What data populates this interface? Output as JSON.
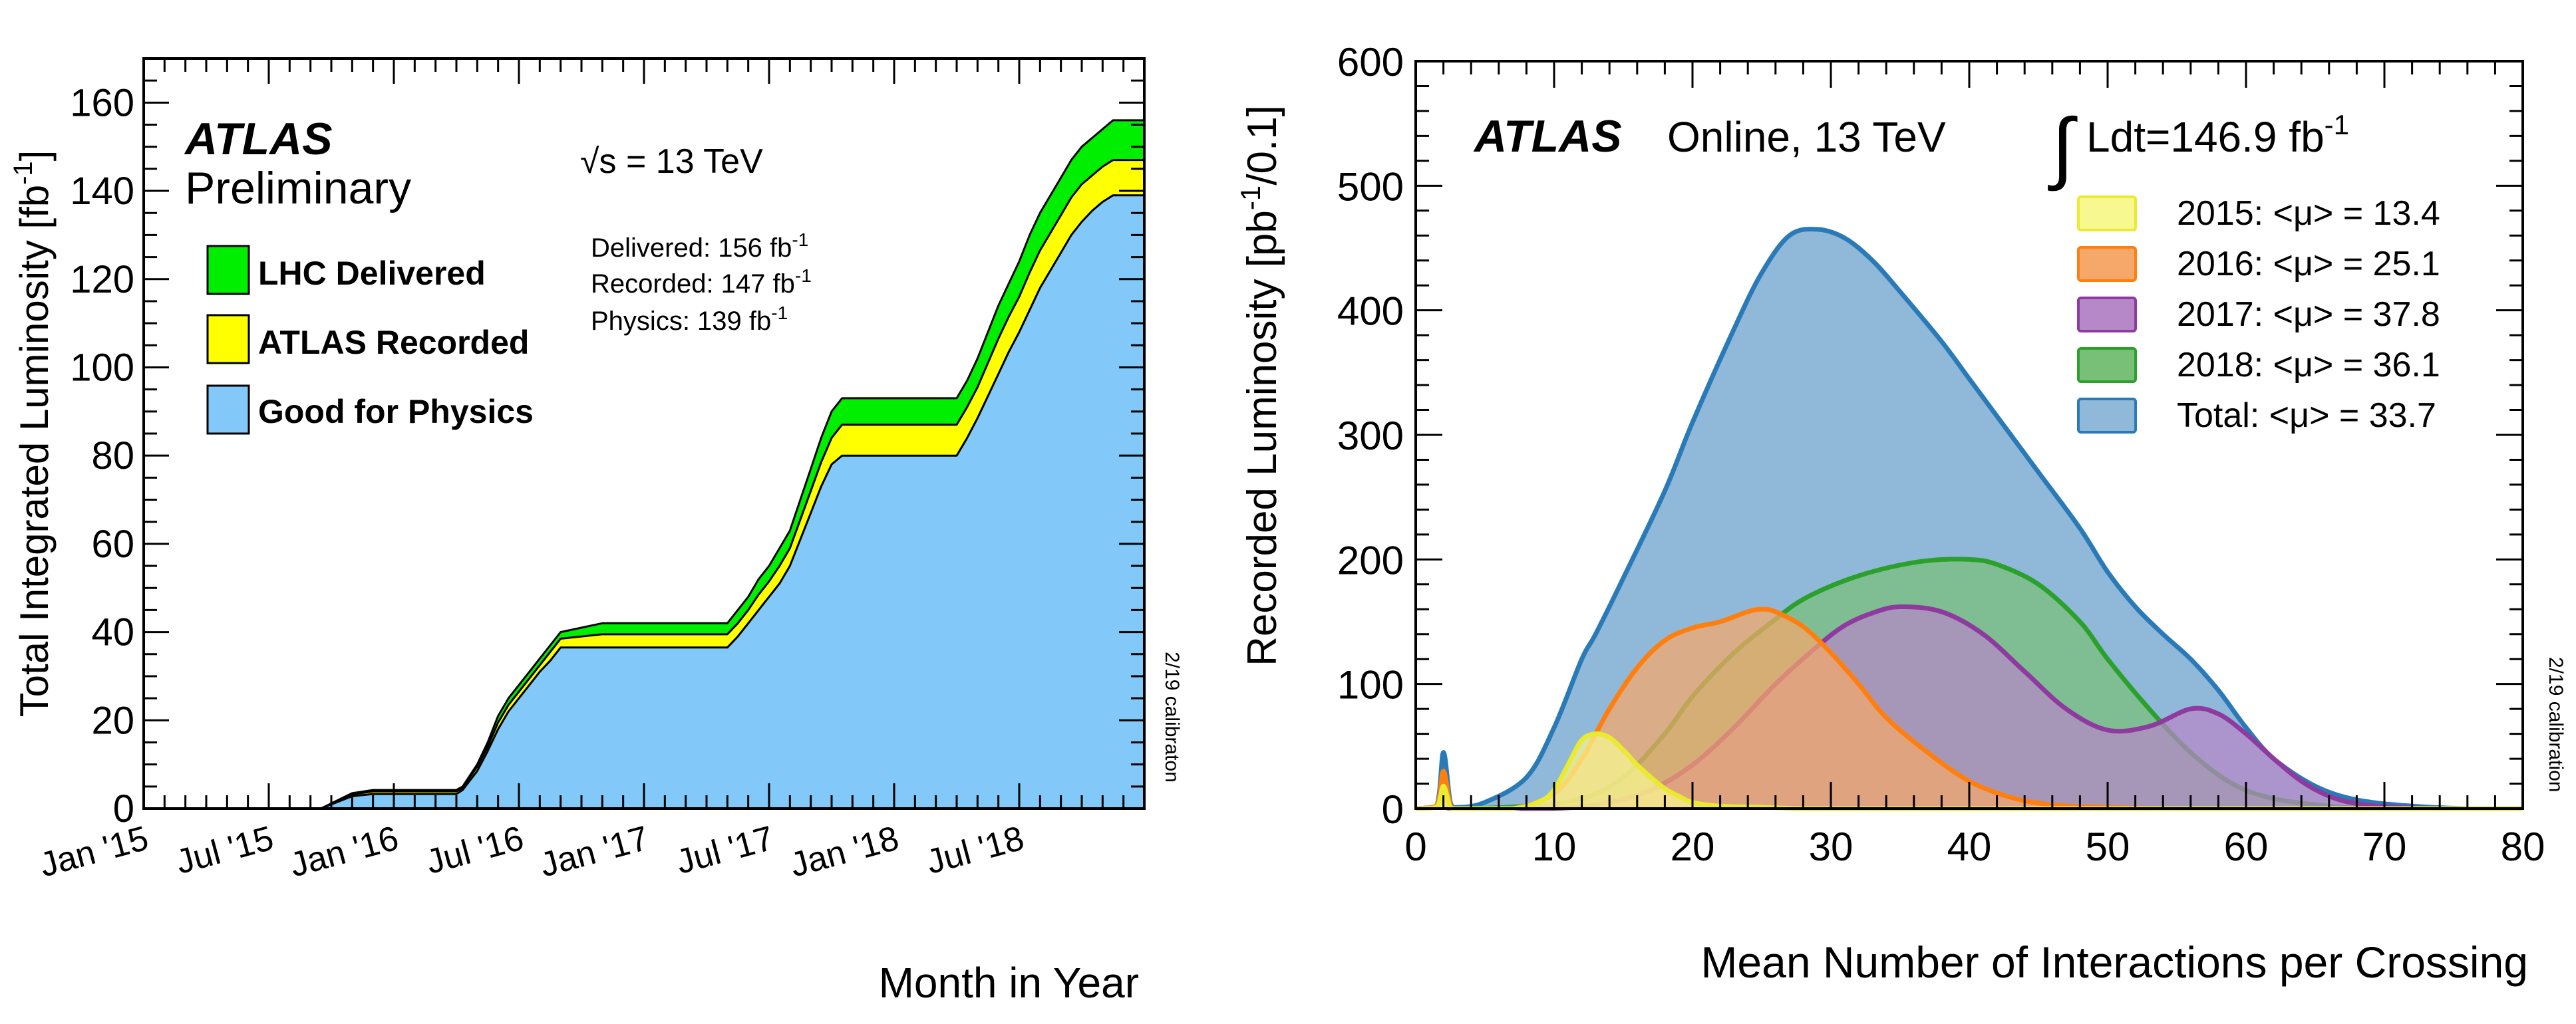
{
  "chart_data": [
    {
      "type": "area",
      "brand": "ATLAS",
      "status": "Preliminary",
      "energy_label": "√s = 13 TeV",
      "annotations": [
        "Delivered: 156 fb-1",
        "Recorded: 147 fb-1",
        "Physics: 139 fb-1"
      ],
      "side_note": "2/19 calibraton",
      "xlabel": "Month in Year",
      "ylabel": "Total Integrated Luminosity [fb-1]",
      "ylim": [
        0,
        170
      ],
      "yticks": [
        0,
        20,
        40,
        60,
        80,
        100,
        120,
        140,
        160
      ],
      "x_tick_labels": [
        "Jan '15",
        "Jul '15",
        "Jan '16",
        "Jul '16",
        "Jan '17",
        "Jul '17",
        "Jan '18",
        "Jul '18"
      ],
      "x_month_range": [
        0,
        48
      ],
      "legend_position": "top-left",
      "series": [
        {
          "name": "LHC Delivered",
          "color": "#00ee00",
          "x": [
            0,
            8.5,
            10,
            11,
            13,
            15,
            15.3,
            16,
            16.5,
            17,
            17.5,
            18,
            18.5,
            19,
            19.5,
            20,
            22,
            28,
            28.5,
            29,
            29.5,
            30,
            30.5,
            31,
            31.5,
            32,
            32.5,
            33,
            33.5,
            34,
            34.5,
            35,
            36,
            37,
            39,
            39.5,
            40,
            40.5,
            41,
            41.5,
            42,
            42.5,
            43,
            43.5,
            44,
            44.5,
            45,
            45.5,
            46,
            46.5,
            48
          ],
          "y": [
            0,
            0,
            3.5,
            4.2,
            4.2,
            4.2,
            5,
            10,
            15,
            21,
            25,
            28,
            31,
            34,
            37,
            40,
            42,
            42,
            45,
            48,
            52,
            55,
            59,
            63,
            70,
            77,
            84,
            90,
            93,
            93,
            93,
            93,
            93,
            93,
            93,
            97,
            102,
            108,
            114,
            119,
            124,
            130,
            135,
            139,
            143,
            147,
            150,
            152,
            154,
            156,
            156
          ]
        },
        {
          "name": "ATLAS Recorded",
          "color": "#ffff00",
          "x": [
            0,
            8.5,
            10,
            11,
            13,
            15,
            15.3,
            16,
            16.5,
            17,
            17.5,
            18,
            18.5,
            19,
            19.5,
            20,
            22,
            28,
            28.5,
            29,
            29.5,
            30,
            30.5,
            31,
            31.5,
            32,
            32.5,
            33,
            33.5,
            34,
            34.5,
            35,
            36,
            37,
            39,
            39.5,
            40,
            40.5,
            41,
            41.5,
            42,
            42.5,
            43,
            43.5,
            44,
            44.5,
            45,
            45.5,
            46,
            46.5,
            48
          ],
          "y": [
            0,
            0,
            3.2,
            3.9,
            3.9,
            3.9,
            4.7,
            9.5,
            14,
            19.5,
            23.5,
            26.5,
            29.5,
            32.5,
            35.5,
            38.5,
            39.5,
            39.5,
            42,
            45,
            48.5,
            51.5,
            55,
            59,
            65.5,
            72,
            78.5,
            84,
            87,
            87,
            87,
            87,
            87,
            87,
            87,
            91,
            95.5,
            101,
            106.5,
            111.5,
            116,
            121.5,
            126.5,
            130.5,
            134.5,
            138.5,
            141.5,
            143.5,
            145.5,
            147,
            147
          ]
        },
        {
          "name": "Good for Physics",
          "color": "#82c8f8",
          "x": [
            0,
            8.5,
            10,
            11,
            13,
            15,
            15.3,
            16,
            16.5,
            17,
            17.5,
            18,
            18.5,
            19,
            19.5,
            20,
            22,
            28,
            28.5,
            29,
            29.5,
            30,
            30.5,
            31,
            31.5,
            32,
            32.5,
            33,
            33.5,
            34,
            34.5,
            35,
            36,
            37,
            39,
            39.5,
            40,
            40.5,
            41,
            41.5,
            42,
            42.5,
            43,
            43.5,
            44,
            44.5,
            45,
            45.5,
            46,
            46.5,
            48
          ],
          "y": [
            0,
            0,
            2.8,
            3.3,
            3.3,
            3.3,
            4.2,
            8.5,
            13,
            18,
            22,
            25,
            28,
            31,
            33.5,
            36.5,
            36.5,
            36.5,
            39,
            42,
            45,
            48,
            51,
            55,
            61,
            67,
            73,
            78,
            80,
            80,
            80,
            80,
            80,
            80,
            80,
            84,
            88.5,
            93.5,
            98.5,
            103.5,
            108,
            113,
            118,
            122,
            126,
            130,
            133,
            135.5,
            137.5,
            139,
            139
          ]
        }
      ]
    },
    {
      "type": "area",
      "brand": "ATLAS",
      "status": "Online, 13 TeV",
      "lumi_label": "∫Ldt=146.9 fb-1",
      "side_note": "2/19 calibration",
      "xlabel": "Mean Number of Interactions per Crossing",
      "ylabel": "Recorded Luminosity [pb-1/0.1]",
      "xlim": [
        0,
        80
      ],
      "ylim": [
        0,
        600
      ],
      "xticks": [
        0,
        10,
        20,
        30,
        40,
        50,
        60,
        70,
        80
      ],
      "yticks": [
        0,
        100,
        200,
        300,
        400,
        500,
        600
      ],
      "legend_position": "top-right",
      "series": [
        {
          "name": "Total",
          "legend": "Total: <μ> = 33.7",
          "color": "#2a7ab8",
          "fill": "#90b8d8",
          "x": [
            0,
            1.5,
            2,
            2.5,
            3,
            5,
            8,
            10,
            12,
            13,
            15,
            18,
            20,
            23,
            25,
            27,
            29,
            31,
            33,
            35,
            38,
            40,
            43,
            45,
            48,
            50,
            52,
            54,
            56,
            58,
            60,
            62,
            65,
            68,
            72,
            76,
            80
          ],
          "y": [
            0,
            2,
            45,
            5,
            1,
            5,
            25,
            65,
            120,
            140,
            185,
            255,
            310,
            385,
            430,
            460,
            465,
            458,
            440,
            415,
            375,
            345,
            300,
            270,
            225,
            190,
            162,
            140,
            120,
            95,
            65,
            40,
            18,
            7,
            2,
            0,
            0
          ]
        },
        {
          "name": "2018",
          "legend": "2018: <μ> = 36.1",
          "color": "#2ca02c",
          "fill": "#78c078",
          "x": [
            0,
            1.5,
            2,
            2.5,
            3,
            8,
            12,
            15,
            18,
            20,
            23,
            26,
            28,
            31,
            34,
            37,
            40,
            42,
            45,
            48,
            50,
            53,
            56,
            59,
            62,
            66,
            70,
            75,
            80
          ],
          "y": [
            0,
            2,
            30,
            3,
            0,
            2,
            8,
            25,
            60,
            90,
            125,
            152,
            168,
            183,
            193,
            199,
            200,
            196,
            180,
            150,
            120,
            80,
            45,
            20,
            8,
            2,
            0,
            0,
            0
          ]
        },
        {
          "name": "2017",
          "legend": "2017: <μ> = 37.8",
          "color": "#8e3a9e",
          "fill": "#b688c8",
          "x": [
            0,
            1.5,
            2,
            2.5,
            3,
            10,
            14,
            17,
            20,
            23,
            26,
            29,
            31,
            33,
            35,
            38,
            41,
            44,
            47,
            50,
            53,
            56,
            58,
            60,
            62,
            64,
            66,
            68,
            71,
            75,
            80
          ],
          "y": [
            0,
            2,
            25,
            3,
            0,
            0,
            5,
            15,
            35,
            65,
            100,
            130,
            147,
            157,
            162,
            158,
            140,
            110,
            80,
            63,
            66,
            80,
            76,
            60,
            40,
            22,
            10,
            4,
            1,
            0,
            0
          ]
        },
        {
          "name": "2016",
          "legend": "2016: <μ> = 25.1",
          "color": "#ff7f0e",
          "fill": "#f6a86a",
          "x": [
            0,
            1.5,
            2,
            2.5,
            3,
            7,
            10,
            12,
            14,
            16,
            18,
            20,
            22,
            24,
            25,
            26,
            28,
            30,
            32,
            34,
            37,
            40,
            43,
            46,
            50,
            55,
            60,
            80
          ],
          "y": [
            0,
            2,
            30,
            3,
            0,
            0,
            12,
            40,
            80,
            113,
            135,
            145,
            150,
            158,
            160,
            158,
            146,
            125,
            100,
            73,
            45,
            22,
            9,
            3,
            1,
            0,
            0,
            0
          ]
        },
        {
          "name": "2015",
          "legend": "2015: <μ> = 13.4",
          "color": "#eaea30",
          "fill": "#f8f890",
          "x": [
            0,
            1.5,
            2,
            2.5,
            3,
            7,
            9,
            10,
            11,
            12,
            13,
            14,
            15,
            16,
            17,
            18,
            19,
            20,
            22,
            25,
            28,
            32,
            80
          ],
          "y": [
            0,
            1,
            18,
            1,
            0,
            0,
            6,
            15,
            35,
            55,
            60,
            57,
            47,
            35,
            25,
            16,
            10,
            5,
            2,
            1,
            0,
            0,
            0
          ]
        }
      ]
    }
  ]
}
